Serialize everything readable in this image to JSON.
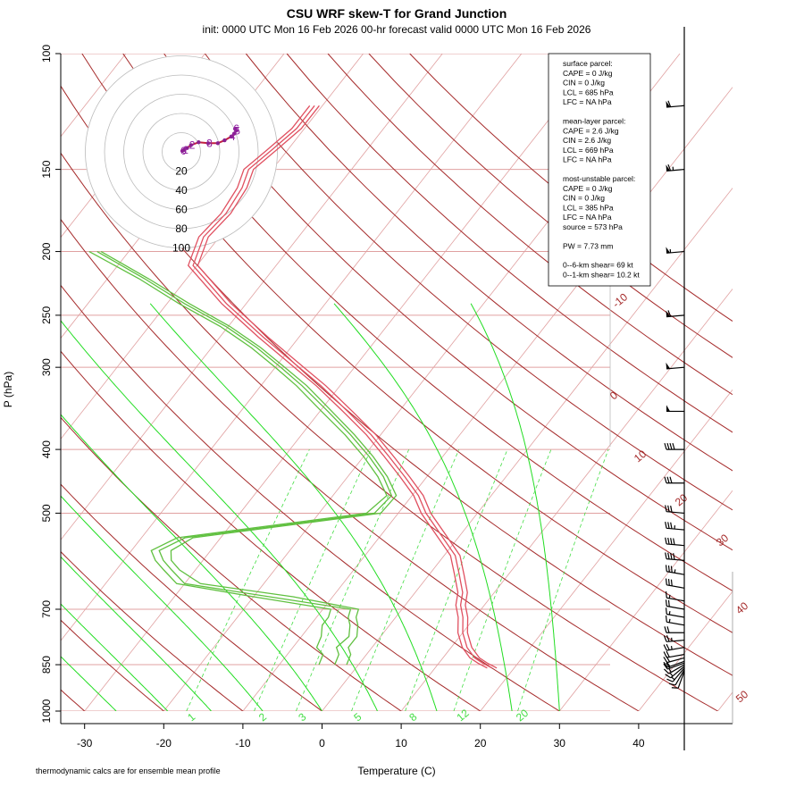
{
  "chart_data": {
    "type": "skew-t",
    "title": "CSU WRF skew-T for Grand Junction",
    "subtitle": "init: 0000 UTC Mon 16 Feb 2026     00-hr forecast valid 0000 UTC Mon 16 Feb 2026",
    "xlabel": "Temperature (C)",
    "ylabel": "P (hPa)",
    "footnote": "thermodynamic calcs are for ensemble mean profile",
    "pressure_ticks": [
      100,
      150,
      200,
      250,
      300,
      400,
      500,
      700,
      850,
      1000
    ],
    "temperature_ticks": [
      -30,
      -20,
      -10,
      0,
      10,
      20,
      30,
      40
    ],
    "dry_adiabat_labels": [
      -10,
      0,
      10,
      20,
      30,
      40,
      50
    ],
    "moist_adiabat_starts": [
      -26,
      -19.5,
      -14,
      -7.5,
      0,
      7,
      14.5,
      24,
      30
    ],
    "mixing_ratio_labels": [
      "1",
      "2",
      "3",
      "5",
      "8",
      "12",
      "20"
    ],
    "mixing_ratio_temps": [
      -16.5,
      -7.5,
      -2.5,
      4.5,
      11.5,
      17.5,
      25
    ],
    "colors": {
      "dry_adiabat": "#a52a2a",
      "moist_adiabat": "#22dd22",
      "mixing_ratio": "#44dd44",
      "temperature": "#e05060",
      "dewpoint": "#60c040",
      "grid": "#e0a0a0"
    },
    "temperature_profile": {
      "pressure": [
        860,
        845,
        830,
        800,
        760,
        720,
        690,
        660,
        620,
        580,
        540,
        500,
        470,
        440,
        410,
        380,
        350,
        320,
        300,
        270,
        240,
        210,
        190,
        175,
        160,
        150,
        140,
        130,
        120
      ],
      "temp_c": [
        17.2,
        15.5,
        14,
        12,
        10,
        8.5,
        7,
        6,
        3.8,
        1.4,
        -2.4,
        -6.5,
        -9.2,
        -12.8,
        -16.8,
        -21.2,
        -26.5,
        -32.4,
        -37,
        -44.5,
        -52.5,
        -60.5,
        -62,
        -61.5,
        -62,
        -63,
        -62,
        -61,
        -61
      ]
    },
    "dewpoint_profiles": [
      {
        "pressure": [
          850,
          820,
          800,
          770,
          740,
          720,
          700,
          670,
          640,
          610,
          590,
          570,
          545,
          500,
          470,
          440,
          410,
          380,
          350,
          320,
          300,
          280,
          260,
          240,
          220,
          200
        ],
        "dewpt_c": [
          -5,
          -5.5,
          -7,
          -7.5,
          -8.5,
          -8.5,
          -9,
          -20,
          -31,
          -34,
          -36,
          -37.5,
          -35.5,
          -14,
          -13.2,
          -16.2,
          -20,
          -24.5,
          -29.8,
          -35.5,
          -40,
          -45,
          -51,
          -58.5,
          -66,
          -75
        ]
      },
      {
        "pressure": [
          850,
          820,
          800,
          770,
          740,
          720,
          700,
          670,
          640,
          610,
          590,
          570,
          545,
          500,
          470,
          440,
          410,
          380,
          350,
          320,
          300,
          280,
          260,
          240,
          220,
          200
        ],
        "dewpt_c": [
          -3,
          -3.5,
          -4.5,
          -4,
          -5,
          -6,
          -6.5,
          -18,
          -30,
          -33,
          -35,
          -36.5,
          -34.5,
          -13,
          -12.6,
          -15.5,
          -19.3,
          -23.8,
          -29,
          -34.8,
          -39.3,
          -44.3,
          -50.3,
          -57.8,
          -65.3,
          -74
        ]
      },
      {
        "pressure": [
          850,
          820,
          800,
          770,
          740,
          720,
          700,
          670,
          640,
          610,
          590,
          570,
          545,
          500,
          470,
          440,
          410,
          380,
          350,
          320,
          300,
          280,
          260,
          240,
          220,
          200
        ],
        "dewpt_c": [
          -1.5,
          -2,
          -3,
          -3,
          -4,
          -5,
          -5.5,
          -15,
          -28,
          -32,
          -34,
          -35,
          -33.5,
          -12.2,
          -12,
          -15,
          -18.8,
          -23.3,
          -28.5,
          -34.2,
          -38.8,
          -43.8,
          -49.8,
          -57.2,
          -64.8,
          -73.5
        ]
      }
    ],
    "hodograph": {
      "rings_kt": [
        20,
        40,
        60,
        80,
        100
      ],
      "height_labels": [
        "0",
        "1",
        "2",
        "3",
        "4",
        "5",
        "6"
      ],
      "u_kt": [
        1,
        3,
        6,
        10,
        18,
        28,
        38,
        45,
        52,
        55,
        57,
        56
      ],
      "v_kt": [
        1,
        2,
        4,
        7,
        10,
        9,
        9,
        12,
        16,
        19,
        22,
        24
      ]
    },
    "wind_barbs": {
      "pressure": [
        870,
        865,
        860,
        855,
        850,
        845,
        840,
        830,
        820,
        800,
        780,
        760,
        740,
        720,
        700,
        680,
        650,
        620,
        590,
        560,
        530,
        500,
        450,
        400,
        350,
        300,
        250,
        200,
        150,
        120
      ],
      "speed_kt": [
        10,
        12,
        15,
        15,
        18,
        20,
        20,
        22,
        22,
        25,
        25,
        20,
        15,
        15,
        20,
        15,
        30,
        35,
        40,
        40,
        35,
        30,
        30,
        40,
        50,
        50,
        60,
        55,
        65,
        60
      ],
      "direction_deg": [
        200,
        210,
        220,
        230,
        240,
        250,
        250,
        255,
        260,
        260,
        265,
        270,
        280,
        280,
        280,
        280,
        280,
        280,
        275,
        275,
        275,
        275,
        270,
        270,
        270,
        265,
        265,
        265,
        265,
        265
      ]
    },
    "parcel_info": [
      "surface parcel:",
      "CAPE = 0 J/kg",
      "CIN = 0 J/kg",
      "LCL = 685 hPa",
      "LFC = NA hPa",
      "",
      "mean-layer parcel:",
      "CAPE = 2.6 J/kg",
      "CIN = 2.6 J/kg",
      "LCL = 669 hPa",
      "LFC = NA hPa",
      "",
      "most-unstable parcel:",
      "CAPE = 0 J/kg",
      "CIN = 0 J/kg",
      "LCL = 385 hPa",
      "LFC = NA hPa",
      "source = 573 hPa",
      "",
      "PW =  7.73 mm",
      "",
      "0--6-km shear= 69 kt",
      "0--1-km shear= 10.2 kt"
    ]
  }
}
